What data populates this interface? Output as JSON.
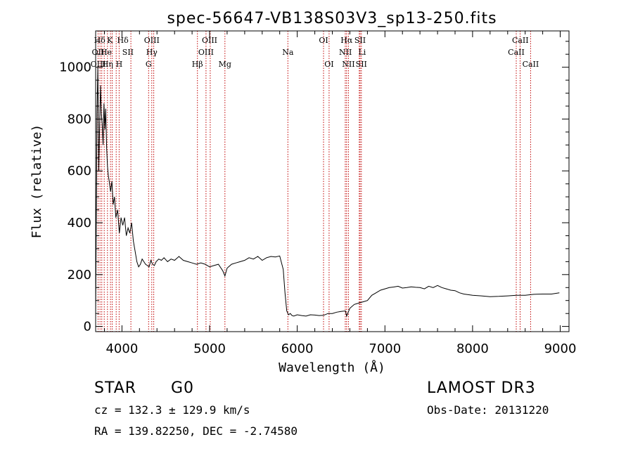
{
  "chart_data": {
    "type": "line",
    "title": "spec-56647-VB138S03V3_sp13-250.fits",
    "xlabel": "Wavelength (Å)",
    "ylabel": "Flux (relative)",
    "xlim": [
      3700,
      9100
    ],
    "ylim": [
      -20,
      1140
    ],
    "xticks": [
      4000,
      5000,
      6000,
      7000,
      8000,
      9000
    ],
    "yticks": [
      0,
      200,
      400,
      600,
      800,
      1000
    ],
    "grid": false,
    "series": [
      {
        "name": "flux",
        "x": [
          3700,
          3715,
          3725,
          3735,
          3745,
          3755,
          3765,
          3775,
          3785,
          3795,
          3805,
          3815,
          3825,
          3835,
          3845,
          3855,
          3870,
          3885,
          3900,
          3915,
          3930,
          3950,
          3970,
          3990,
          4010,
          4030,
          4050,
          4070,
          4090,
          4110,
          4130,
          4150,
          4170,
          4190,
          4210,
          4230,
          4250,
          4270,
          4290,
          4310,
          4330,
          4350,
          4370,
          4390,
          4420,
          4450,
          4480,
          4520,
          4560,
          4600,
          4650,
          4700,
          4750,
          4800,
          4850,
          4900,
          4950,
          5000,
          5050,
          5100,
          5150,
          5175,
          5200,
          5250,
          5300,
          5350,
          5400,
          5450,
          5500,
          5550,
          5600,
          5650,
          5700,
          5750,
          5800,
          5840,
          5860,
          5880,
          5900,
          5920,
          5940,
          5960,
          6000,
          6050,
          6100,
          6150,
          6200,
          6250,
          6300,
          6350,
          6400,
          6450,
          6500,
          6550,
          6563,
          6600,
          6650,
          6700,
          6750,
          6800,
          6850,
          6900,
          6950,
          7000,
          7050,
          7100,
          7150,
          7200,
          7250,
          7300,
          7350,
          7400,
          7450,
          7500,
          7550,
          7600,
          7650,
          7700,
          7750,
          7800,
          7850,
          7900,
          8000,
          8100,
          8200,
          8300,
          8400,
          8500,
          8600,
          8700,
          8800,
          8900,
          8990
        ],
        "values": [
          40,
          820,
          1000,
          600,
          760,
          930,
          820,
          780,
          700,
          860,
          760,
          840,
          690,
          620,
          580,
          560,
          520,
          560,
          470,
          500,
          420,
          450,
          360,
          420,
          390,
          420,
          350,
          380,
          360,
          400,
          330,
          290,
          250,
          230,
          240,
          260,
          250,
          240,
          235,
          230,
          255,
          240,
          235,
          250,
          260,
          255,
          265,
          250,
          260,
          255,
          270,
          255,
          250,
          245,
          240,
          245,
          240,
          230,
          235,
          240,
          215,
          195,
          225,
          240,
          245,
          250,
          255,
          265,
          260,
          270,
          255,
          265,
          270,
          268,
          272,
          220,
          130,
          60,
          45,
          50,
          42,
          40,
          45,
          42,
          40,
          45,
          44,
          42,
          43,
          50,
          50,
          55,
          58,
          60,
          40,
          70,
          85,
          90,
          95,
          100,
          120,
          130,
          140,
          145,
          150,
          152,
          155,
          148,
          150,
          153,
          151,
          150,
          145,
          155,
          150,
          158,
          150,
          145,
          140,
          138,
          130,
          125,
          120,
          118,
          115,
          116,
          118,
          120,
          120,
          124,
          125,
          125,
          130
        ]
      }
    ],
    "line_labels": [
      {
        "text": "Hδ",
        "row": 1,
        "x": 3746
      },
      {
        "text": "K",
        "row": 1,
        "x": 3862
      },
      {
        "text": "Hδ",
        "row": 1,
        "x": 4010
      },
      {
        "text": "OIII",
        "row": 1,
        "x": 4340
      },
      {
        "text": "OIII",
        "row": 1,
        "x": 5000
      },
      {
        "text": "OI",
        "row": 1,
        "x": 6300
      },
      {
        "text": "Hα",
        "row": 1,
        "x": 6563
      },
      {
        "text": "SII",
        "row": 1,
        "x": 6717
      },
      {
        "text": "CaII",
        "row": 1,
        "x": 8545
      },
      {
        "text": "OII",
        "row": 2,
        "x": 3727
      },
      {
        "text": "He",
        "row": 2,
        "x": 3820
      },
      {
        "text": "SII",
        "row": 2,
        "x": 4068
      },
      {
        "text": "Hγ",
        "row": 2,
        "x": 4340
      },
      {
        "text": "OIII",
        "row": 2,
        "x": 4959
      },
      {
        "text": "Na",
        "row": 2,
        "x": 5893
      },
      {
        "text": "NII",
        "row": 2,
        "x": 6550
      },
      {
        "text": "Li",
        "row": 2,
        "x": 6740
      },
      {
        "text": "CaII",
        "row": 2,
        "x": 8498
      },
      {
        "text": "OIII",
        "row": 3,
        "x": 3730
      },
      {
        "text": "Hη",
        "row": 3,
        "x": 3835
      },
      {
        "text": "H",
        "row": 3,
        "x": 3968
      },
      {
        "text": "G",
        "row": 3,
        "x": 4304
      },
      {
        "text": "Hβ",
        "row": 3,
        "x": 4861
      },
      {
        "text": "Mg",
        "row": 3,
        "x": 5175
      },
      {
        "text": "OI",
        "row": 3,
        "x": 6363
      },
      {
        "text": "NII",
        "row": 3,
        "x": 6584
      },
      {
        "text": "SII",
        "row": 3,
        "x": 6731
      },
      {
        "text": "CaII",
        "row": 3,
        "x": 8662
      }
    ],
    "marker_lines": [
      3727,
      3750,
      3770,
      3798,
      3835,
      3869,
      3889,
      3934,
      3968,
      4102,
      4304,
      4340,
      4363,
      4861,
      4959,
      5007,
      5175,
      5893,
      6300,
      6363,
      6548,
      6563,
      6584,
      6707,
      6717,
      6731,
      8498,
      8542,
      8662
    ]
  },
  "info": {
    "object_class": "STAR",
    "subclass": "G0",
    "survey": "LAMOST DR3",
    "cz": "cz = 132.3 ± 129.9 km/s",
    "obs_date": "Obs-Date: 20131220",
    "coords": "RA = 139.82250, DEC =  -2.74580"
  },
  "colors": {
    "axes": "#000000",
    "spectrum": "#000000",
    "marker": "#c00000"
  }
}
